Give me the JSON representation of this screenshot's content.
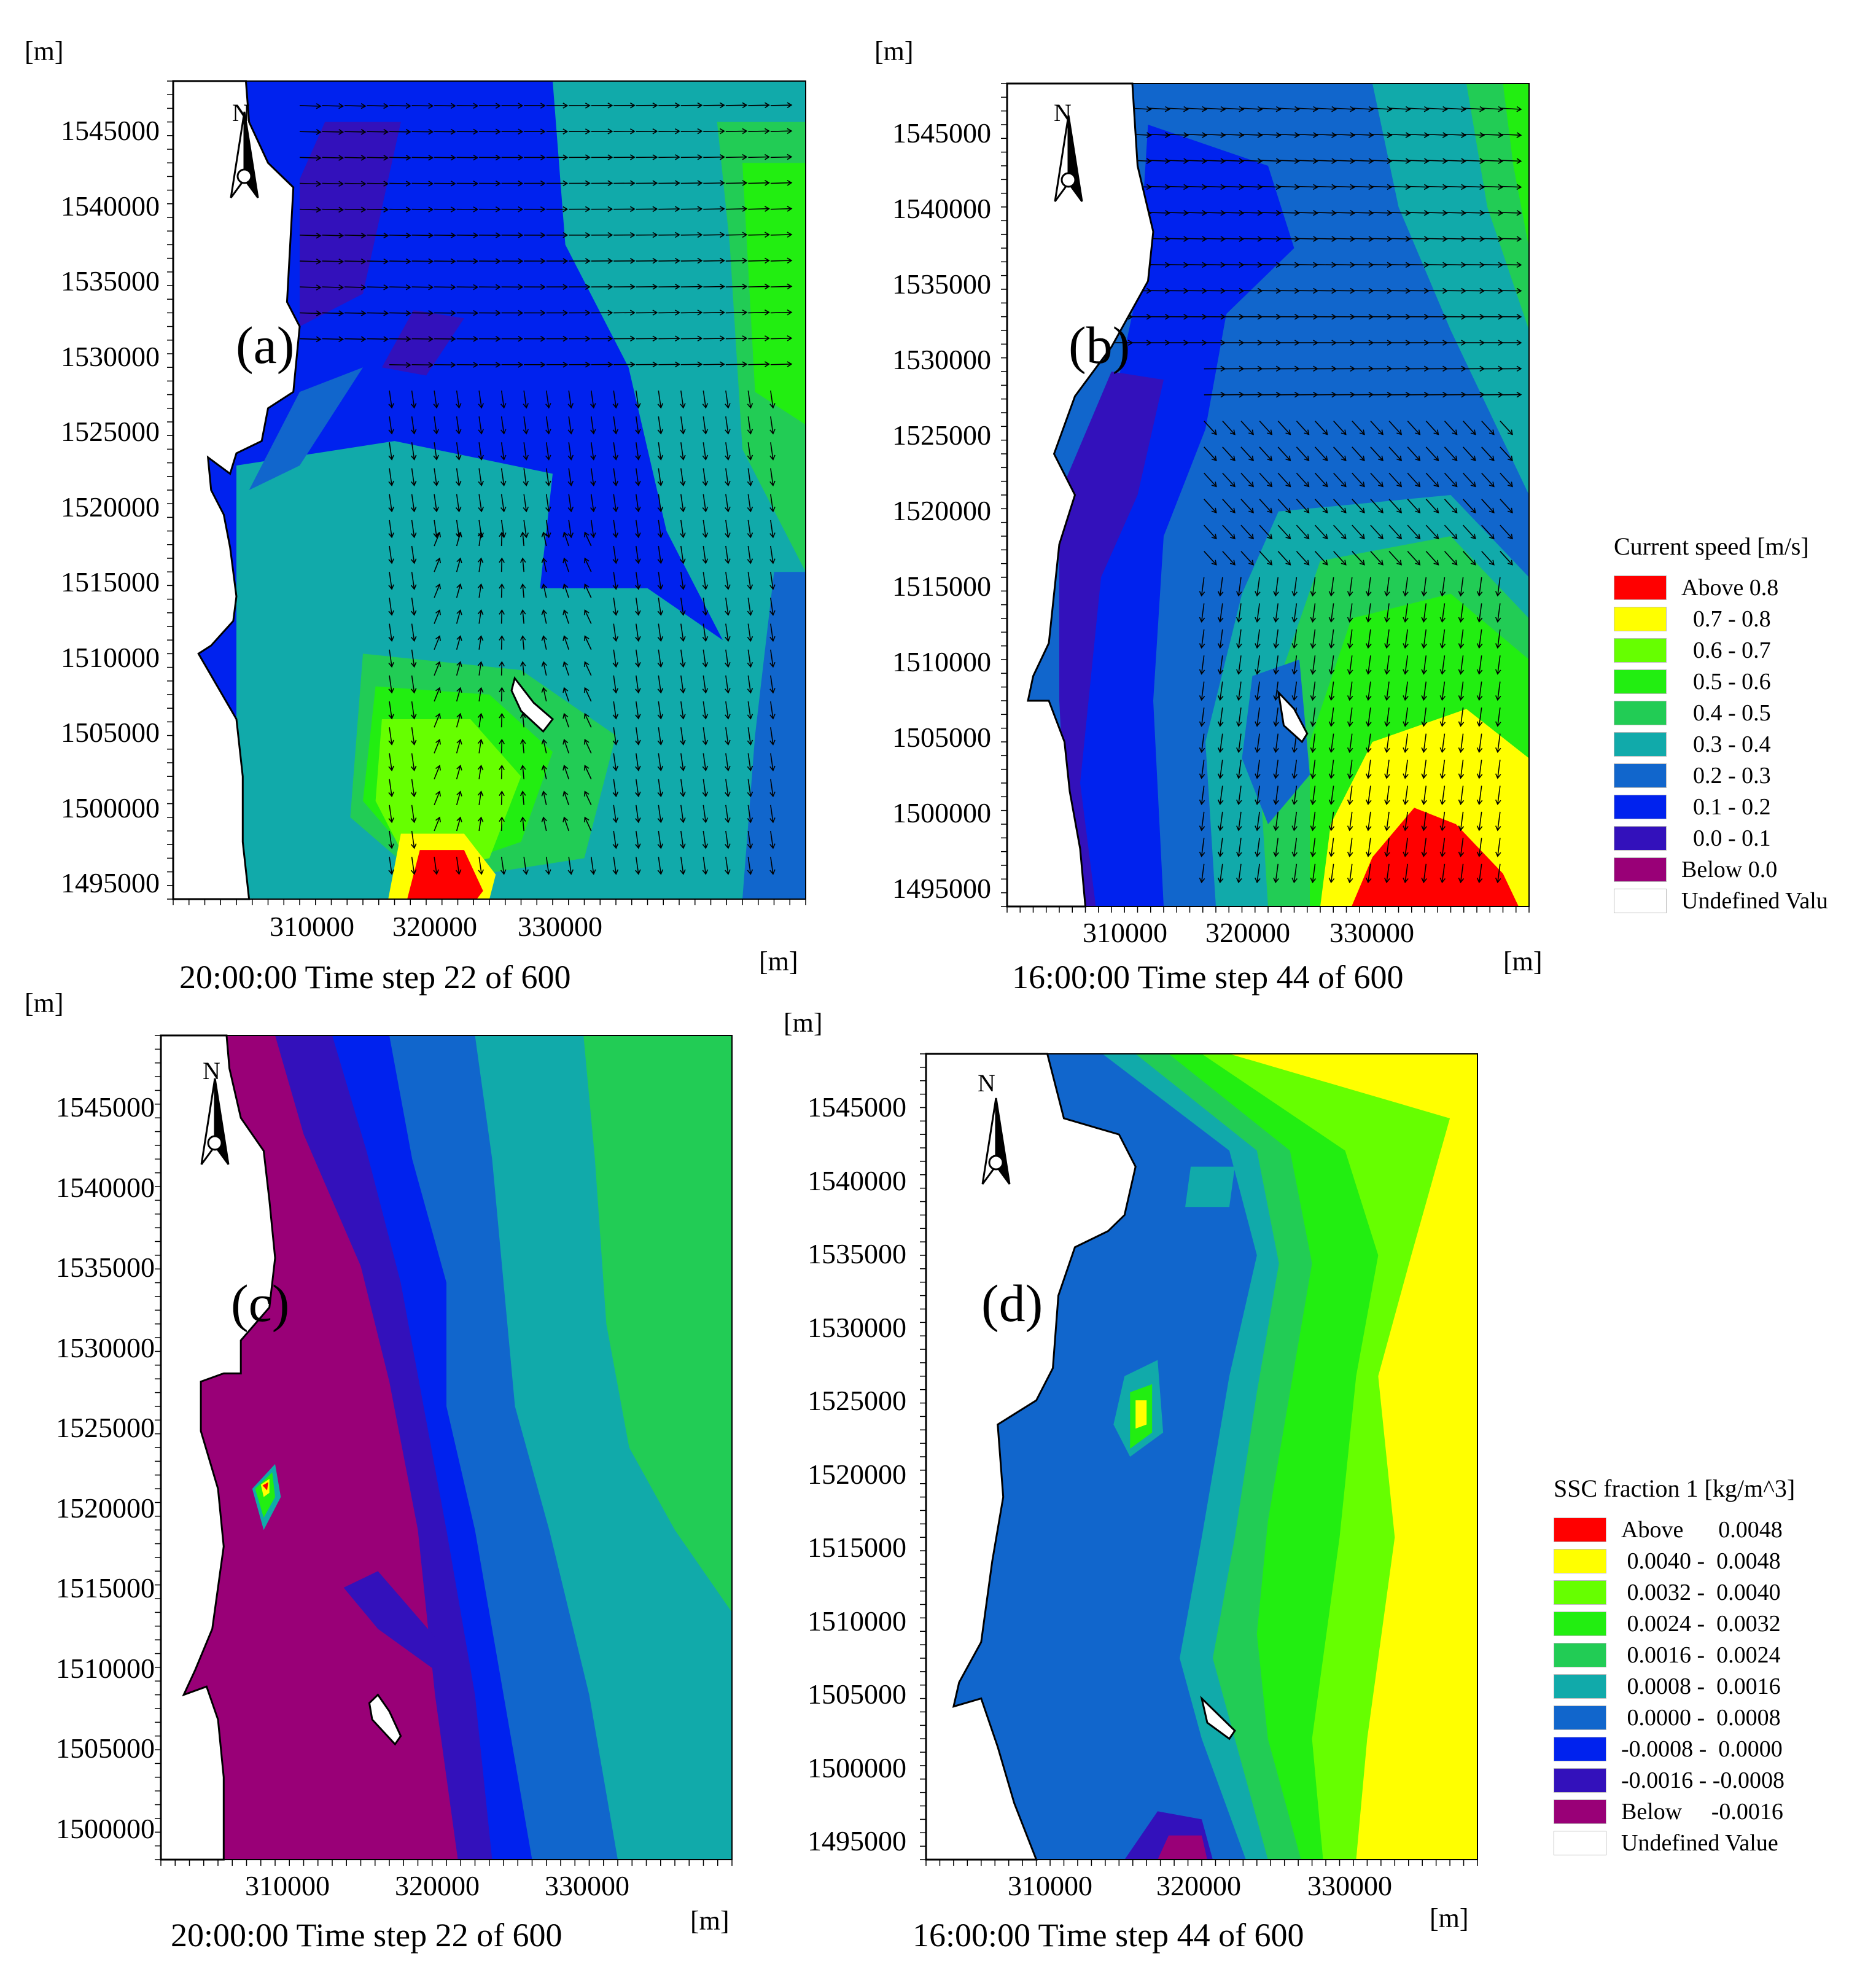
{
  "panels": [
    {
      "id": "a",
      "label": "(a)",
      "unit_top": "[m]",
      "unit_right": "[m]",
      "caption": "20:00:00   Time step 22  of 600",
      "north": "N",
      "y_ticks": [
        "1545000",
        "1540000",
        "1535000",
        "1530000",
        "1525000",
        "1520000",
        "1515000",
        "1510000",
        "1505000",
        "1500000",
        "1495000"
      ],
      "x_ticks": [
        "310000",
        "320000",
        "330000"
      ],
      "variable": "current_speed"
    },
    {
      "id": "b",
      "label": "(b)",
      "unit_top": "[m]",
      "unit_right": "[m]",
      "caption": "16:00:00   Time step 44  of 600",
      "north": "N",
      "y_ticks": [
        "1545000",
        "1540000",
        "1535000",
        "1530000",
        "1525000",
        "1520000",
        "1515000",
        "1510000",
        "1505000",
        "1500000",
        "1495000"
      ],
      "x_ticks": [
        "310000",
        "320000",
        "330000"
      ],
      "variable": "current_speed"
    },
    {
      "id": "c",
      "label": "(c)",
      "unit_top": "[m]",
      "unit_right": "[m]",
      "caption": "20:00:00   Time step 22  of 600",
      "north": "N",
      "y_ticks": [
        "1545000",
        "1540000",
        "1535000",
        "1530000",
        "1525000",
        "1520000",
        "1515000",
        "1510000",
        "1505000",
        "1500000"
      ],
      "x_ticks": [
        "310000",
        "320000",
        "330000"
      ],
      "variable": "ssc"
    },
    {
      "id": "d",
      "label": "(d)",
      "unit_top": "[m]",
      "unit_right": "[m]",
      "caption": "16:00:00   Time step 44  of 600",
      "north": "N",
      "y_ticks": [
        "1545000",
        "1540000",
        "1535000",
        "1530000",
        "1525000",
        "1520000",
        "1515000",
        "1510000",
        "1505000",
        "1500000",
        "1495000"
      ],
      "x_ticks": [
        "310000",
        "320000",
        "330000"
      ],
      "variable": "ssc"
    }
  ],
  "legends": {
    "current": {
      "title": "Current speed [m/s]",
      "items": [
        {
          "label": "Above 0.8",
          "color": "#ff0000"
        },
        {
          "label": "  0.7 - 0.8",
          "color": "#ffff00"
        },
        {
          "label": "  0.6 - 0.7",
          "color": "#66ff00"
        },
        {
          "label": "  0.5 - 0.6",
          "color": "#22ee11"
        },
        {
          "label": "  0.4 - 0.5",
          "color": "#22cc55"
        },
        {
          "label": "  0.3 - 0.4",
          "color": "#11aaaa"
        },
        {
          "label": "  0.2 - 0.3",
          "color": "#1166cc"
        },
        {
          "label": "  0.1 - 0.2",
          "color": "#0022ee"
        },
        {
          "label": "  0.0 - 0.1",
          "color": "#3311bb"
        },
        {
          "label": "Below 0.0",
          "color": "#990077"
        },
        {
          "label": "Undefined Valu",
          "color": "#ffffff"
        }
      ]
    },
    "ssc": {
      "title": "SSC fraction 1 [kg/m^3]",
      "items": [
        {
          "label": "Above      0.0048",
          "color": "#ff0000"
        },
        {
          "label": " 0.0040 -  0.0048",
          "color": "#ffff00"
        },
        {
          "label": " 0.0032 -  0.0040",
          "color": "#66ff00"
        },
        {
          "label": " 0.0024 -  0.0032",
          "color": "#22ee11"
        },
        {
          "label": " 0.0016 -  0.0024",
          "color": "#22cc55"
        },
        {
          "label": " 0.0008 -  0.0016",
          "color": "#11aaaa"
        },
        {
          "label": " 0.0000 -  0.0008",
          "color": "#1166cc"
        },
        {
          "label": "-0.0008 -  0.0000",
          "color": "#0022ee"
        },
        {
          "label": "-0.0016 - -0.0008",
          "color": "#3311bb"
        },
        {
          "label": "Below     -0.0016",
          "color": "#990077"
        },
        {
          "label": "Undefined Value",
          "color": "#ffffff"
        }
      ]
    }
  },
  "colors": {
    "land": "#ffffff",
    "coast": "#000000"
  }
}
